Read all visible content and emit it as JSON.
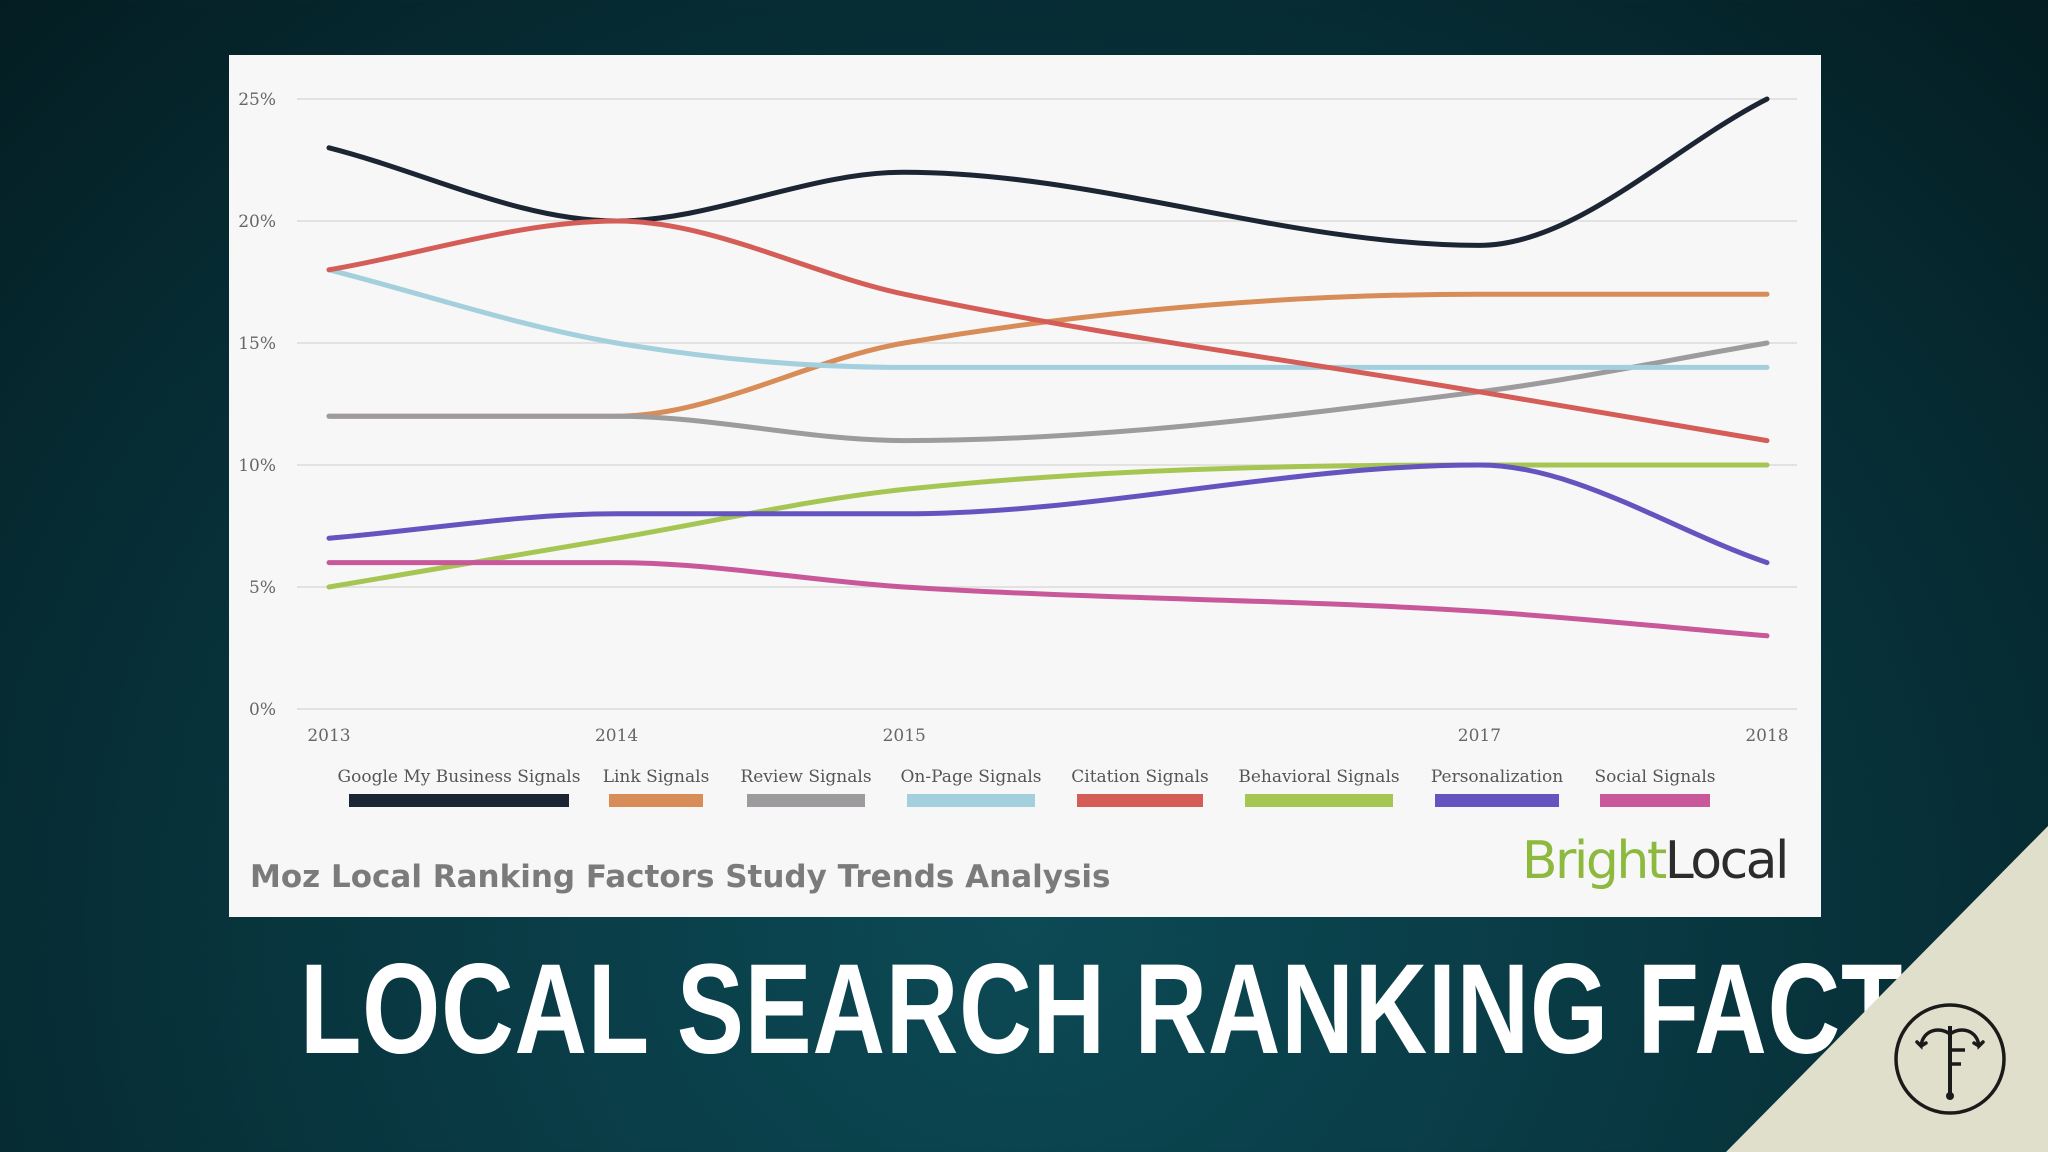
{
  "chart_data": {
    "type": "line",
    "x": [
      2013,
      2014,
      2015,
      2017,
      2018
    ],
    "x_tick_labels": [
      "2013",
      "2014",
      "2015",
      "2017",
      "2018"
    ],
    "y_tick_labels": [
      "0%",
      "5%",
      "10%",
      "15%",
      "20%",
      "25%"
    ],
    "ylim": [
      0,
      25
    ],
    "grid": true,
    "legend_position": "bottom",
    "series": [
      {
        "name": "Google My Business Signals",
        "color": "#1c2533",
        "values": [
          23,
          20,
          22,
          19,
          25
        ]
      },
      {
        "name": "Link Signals",
        "color": "#d88c57",
        "values": [
          12,
          12,
          15,
          17,
          17
        ]
      },
      {
        "name": "Review Signals",
        "color": "#9d9b9d",
        "values": [
          12,
          12,
          11,
          13,
          15
        ]
      },
      {
        "name": "On-Page Signals",
        "color": "#a4d0de",
        "values": [
          18,
          15,
          14,
          14,
          14
        ]
      },
      {
        "name": "Citation Signals",
        "color": "#d55d58",
        "values": [
          18,
          20,
          17,
          13,
          11
        ]
      },
      {
        "name": "Behavioral Signals",
        "color": "#a6c654",
        "values": [
          5,
          7,
          9,
          10,
          10
        ]
      },
      {
        "name": "Personalization",
        "color": "#6554bf",
        "values": [
          7,
          8,
          8,
          10,
          6
        ]
      },
      {
        "name": "Social Signals",
        "color": "#c9589a",
        "values": [
          6,
          6,
          5,
          4,
          3
        ]
      }
    ],
    "caption": "Moz Local Ranking Factors Study Trends Analysis"
  },
  "brand": {
    "part1": "Bright",
    "part2": "Local",
    "bright_color": "#8cb93e",
    "local_color": "#2c2c2c"
  },
  "page": {
    "title": "LOCAL SEARCH RANKING FACTORS",
    "corner_logo_icon": "anchor-monogram-icon"
  },
  "colors": {
    "card_background": "#f7f7f7",
    "corner_triangle": "#e0dfcb",
    "axis_text": "#666666",
    "grid": "#dcdcdc"
  }
}
